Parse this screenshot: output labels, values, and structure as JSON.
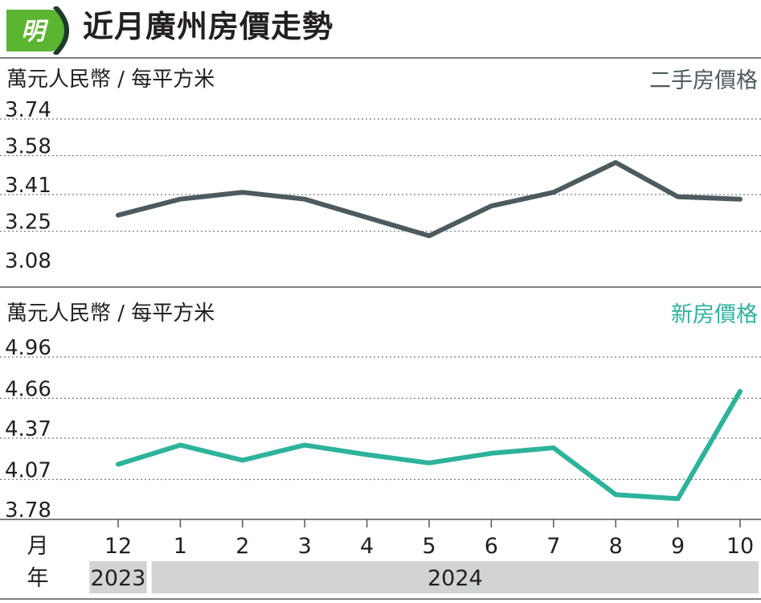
{
  "header": {
    "logo_text": "明",
    "title": "近月廣州房價走勢"
  },
  "colors": {
    "logo_green": "#5cb531",
    "logo_dark": "#1d3a2a",
    "resale_line": "#4d5a5f",
    "new_line": "#2eb39b",
    "year_band": "#d2d3d5"
  },
  "axis": {
    "month_row_label": "月",
    "year_row_label": "年",
    "years": [
      {
        "label": "2023",
        "from": 0,
        "to": 0
      },
      {
        "label": "2024",
        "from": 1,
        "to": 10
      }
    ]
  },
  "chart_data": [
    {
      "type": "line",
      "title": "",
      "ylabel": "萬元人民幣 / 每平方米",
      "xlabel": "",
      "categories": [
        "12",
        "1",
        "2",
        "3",
        "4",
        "5",
        "6",
        "7",
        "8",
        "9",
        "10"
      ],
      "series": [
        {
          "name": "二手房價格",
          "values": [
            3.32,
            3.39,
            3.42,
            3.39,
            3.31,
            3.23,
            3.36,
            3.42,
            3.55,
            3.4,
            3.39
          ]
        }
      ],
      "yticks": [
        3.08,
        3.25,
        3.41,
        3.58,
        3.74
      ],
      "ylim": [
        3.08,
        3.74
      ],
      "grid": true,
      "legend": "top-right"
    },
    {
      "type": "line",
      "title": "",
      "ylabel": "萬元人民幣 / 每平方米",
      "xlabel": "",
      "categories": [
        "12",
        "1",
        "2",
        "3",
        "4",
        "5",
        "6",
        "7",
        "8",
        "9",
        "10"
      ],
      "series": [
        {
          "name": "新房價格",
          "values": [
            4.18,
            4.32,
            4.21,
            4.32,
            4.25,
            4.19,
            4.26,
            4.3,
            3.96,
            3.93,
            4.71
          ]
        }
      ],
      "yticks": [
        3.78,
        4.07,
        4.37,
        4.66,
        4.96
      ],
      "ylim": [
        3.78,
        4.96
      ],
      "grid": true,
      "legend": "top-right"
    }
  ]
}
